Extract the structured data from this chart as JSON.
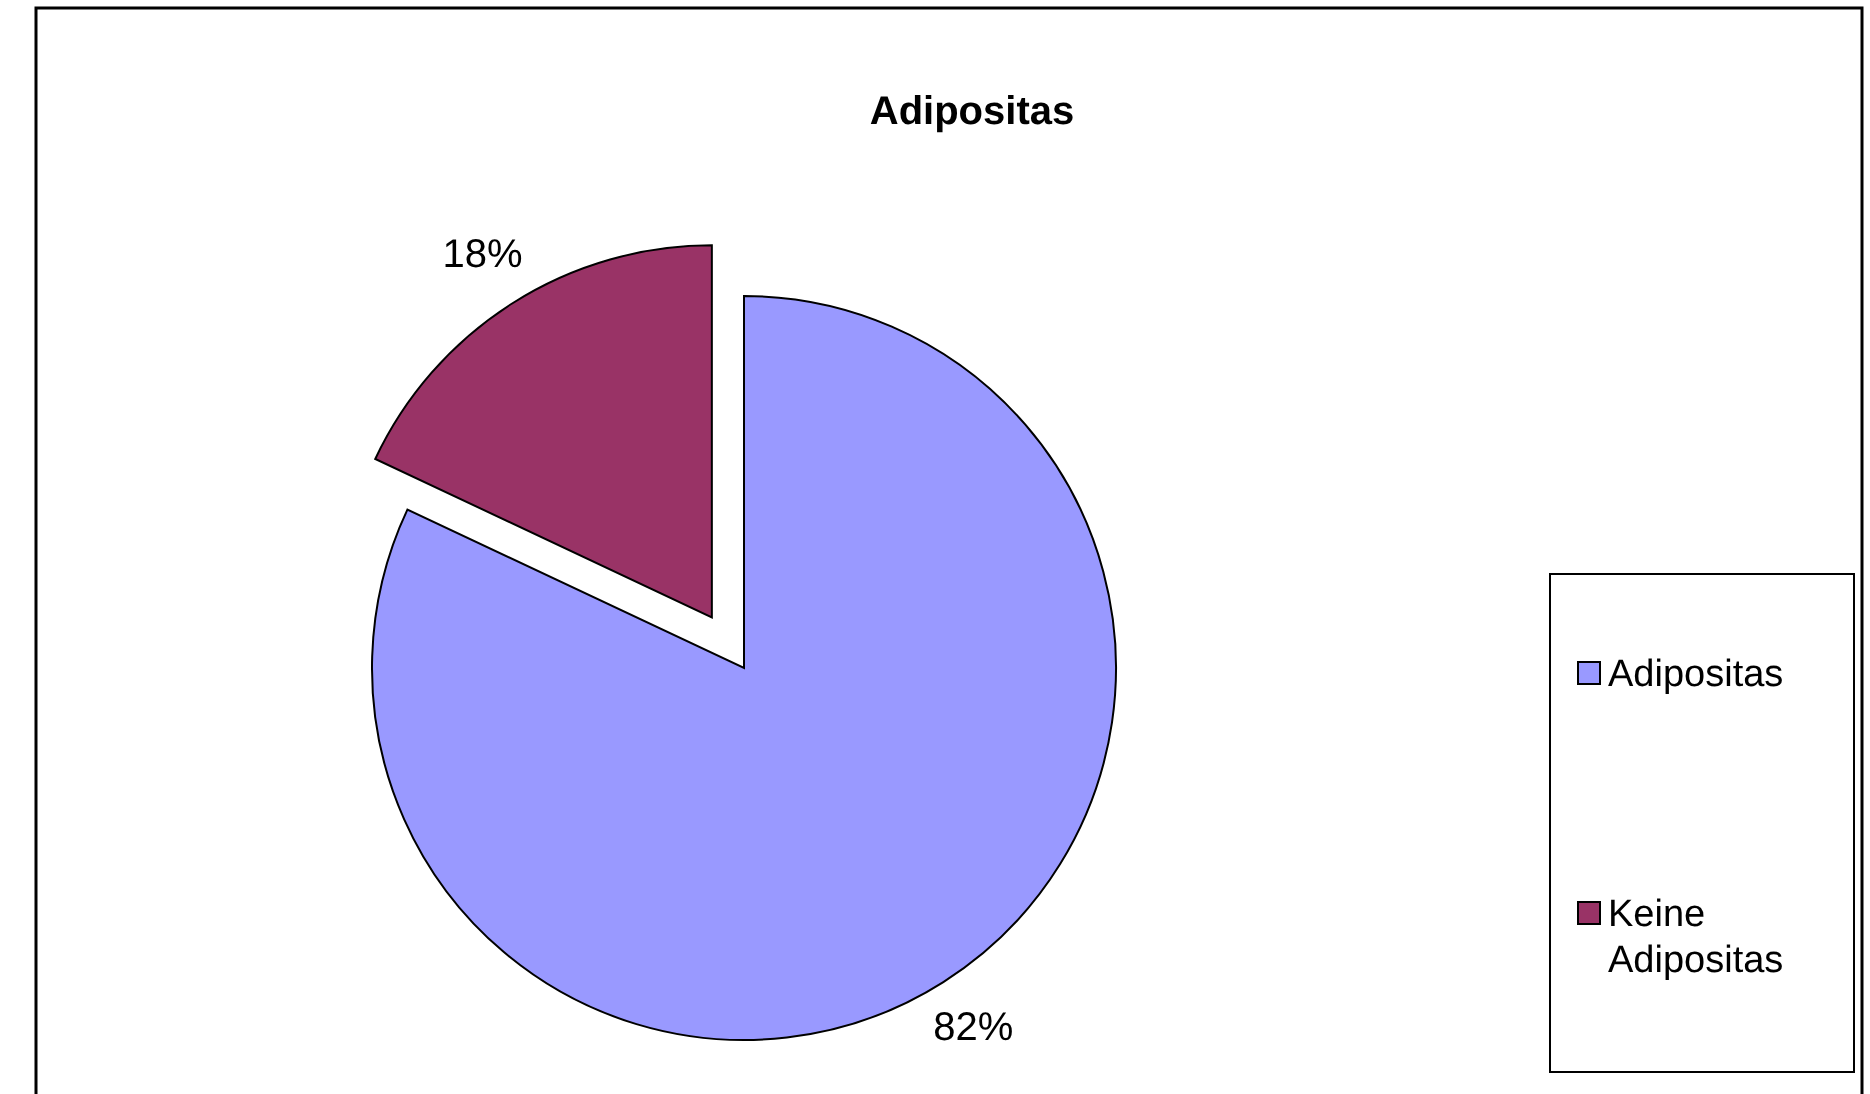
{
  "chart_data": {
    "type": "pie",
    "title": "Adipositas",
    "categories": [
      "Adipositas",
      "Keine Adipositas"
    ],
    "values": [
      82,
      18
    ],
    "colors": [
      "#9999ff",
      "#993366"
    ],
    "value_labels": [
      "82%",
      "18%"
    ],
    "legend": "right"
  }
}
